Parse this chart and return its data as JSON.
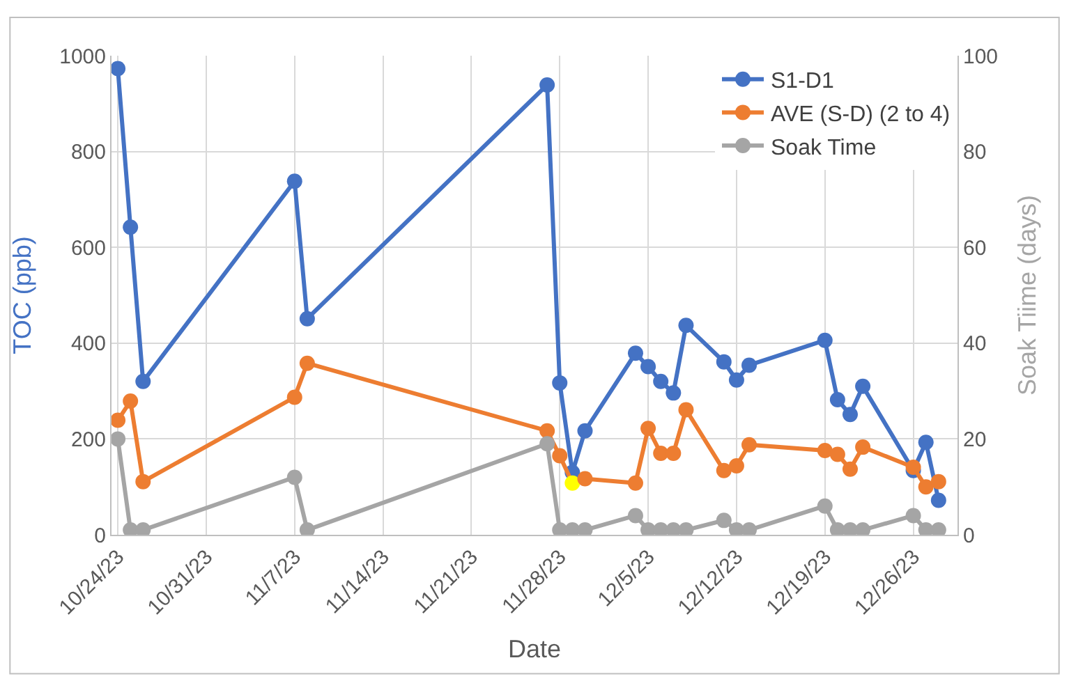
{
  "chart_data": {
    "type": "line",
    "xlabel": "Date",
    "ylabel": "TOC (ppb)",
    "y2label": "Soak Tiime (days)",
    "x": [
      "--10-24",
      "--10-25",
      "--10-26",
      "--11-07",
      "--11-08",
      "--11-27",
      "--11-28",
      "--11-29",
      "--11-30",
      "--12-04",
      "--12-05",
      "--12-06",
      "--12-07",
      "--12-08",
      "--12-11",
      "--12-12",
      "--12-13",
      "--12-19",
      "--12-20",
      "--12-21",
      "--12-22",
      "--12-26",
      "--12-27",
      "--12-28"
    ],
    "series": [
      {
        "name": "S1-D1",
        "color": "#4472c4",
        "values": [
          973,
          642,
          320,
          738,
          451,
          939,
          317,
          130,
          217,
          379,
          351,
          320,
          296,
          437,
          361,
          323,
          354,
          406,
          282,
          251,
          310,
          134,
          193,
          72
        ]
      },
      {
        "name": "AVE (S-D) (2 to 4)",
        "color": "#ed7d31",
        "colors": [
          "#ed7d31",
          "#ed7d31",
          "#ed7d31",
          "#ed7d31",
          "#ed7d31",
          "#ed7d31",
          "#ed7d31",
          "#ffff00",
          "#ed7d31",
          "#ed7d31",
          "#ed7d31",
          "#ed7d31",
          "#ed7d31",
          "#ed7d31",
          "#ed7d31",
          "#ed7d31",
          "#ed7d31",
          "#ed7d31",
          "#ed7d31",
          "#ed7d31",
          "#ed7d31",
          "#ed7d31",
          "#ed7d31",
          "#ed7d31"
        ],
        "values": [
          239,
          279,
          111,
          287,
          358,
          217,
          165,
          108,
          117,
          108,
          222,
          170,
          170,
          261,
          134,
          144,
          188,
          176,
          168,
          137,
          183,
          141,
          100,
          111
        ]
      },
      {
        "name": "Soak Time",
        "color": "#a5a5a5",
        "axis": "y2",
        "values": [
          20,
          1,
          1,
          12,
          1,
          19,
          1,
          1,
          1,
          4,
          1,
          1,
          1,
          1,
          3,
          1,
          1,
          6,
          1,
          1,
          1,
          4,
          1,
          1
        ]
      }
    ],
    "xlim": [
      "--10-23T12:00",
      "--12-29T12:00"
    ],
    "xticks": [
      {
        "value": "--10-24",
        "label": "10/24/23"
      },
      {
        "value": "--10-31",
        "label": "10/31/23"
      },
      {
        "value": "--11-07",
        "label": "11/7/23"
      },
      {
        "value": "--11-14",
        "label": "11/14/23"
      },
      {
        "value": "--11-21",
        "label": "11/21/23"
      },
      {
        "value": "--11-28",
        "label": "11/28/23"
      },
      {
        "value": "--12-05",
        "label": "12/5/23"
      },
      {
        "value": "--12-12",
        "label": "12/12/23"
      },
      {
        "value": "--12-19",
        "label": "12/19/23"
      },
      {
        "value": "--12-26",
        "label": "12/26/23"
      }
    ],
    "ylim": [
      0,
      1000
    ],
    "yticks": [
      0,
      200,
      400,
      600,
      800,
      1000
    ],
    "y2lim": [
      0,
      100
    ],
    "y2ticks": [
      0,
      20,
      40,
      60,
      80,
      100
    ],
    "grid": true,
    "legend": "top right",
    "marker": "circle",
    "line_style": "solid"
  }
}
